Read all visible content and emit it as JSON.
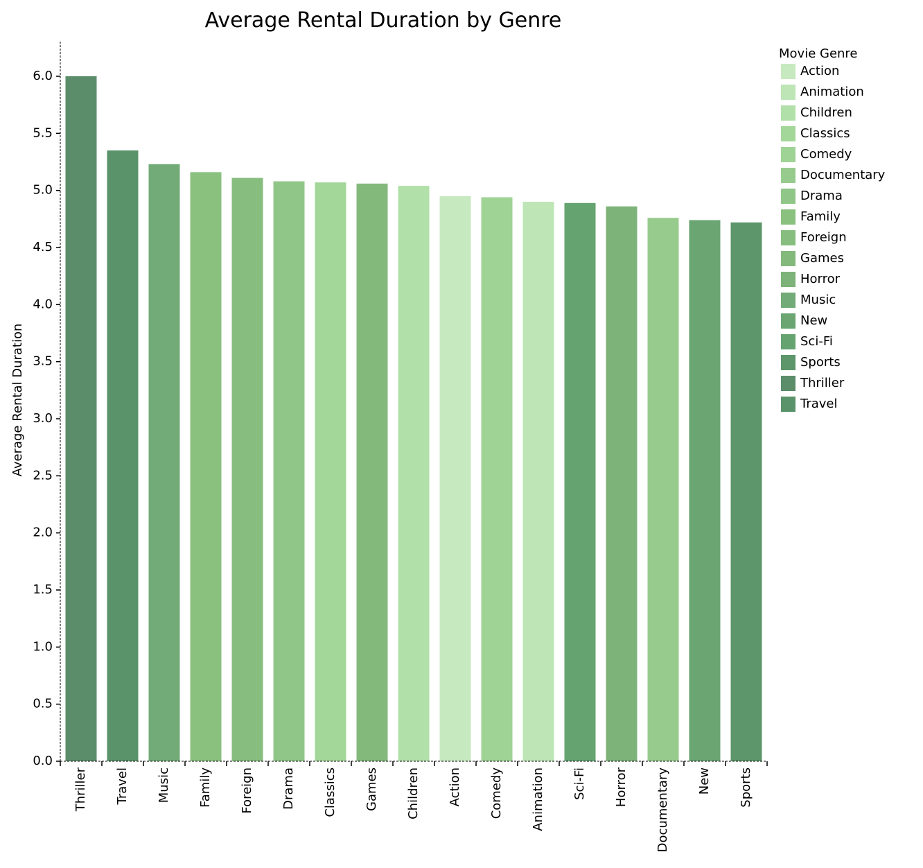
{
  "chart_data": {
    "type": "bar",
    "title": "Average Rental Duration by Genre",
    "xlabel": "",
    "ylabel": "Average Rental Duration",
    "ylim": [
      0,
      6.3
    ],
    "yticks": [
      "0.0",
      "0.5",
      "1.0",
      "1.5",
      "2.0",
      "2.5",
      "3.0",
      "3.5",
      "4.0",
      "4.5",
      "5.0",
      "5.5",
      "6.0"
    ],
    "grid": false,
    "legend_position": "top-right",
    "legend_title": "Movie Genre",
    "categories": [
      "Thriller",
      "Travel",
      "Music",
      "Family",
      "Foreign",
      "Drama",
      "Classics",
      "Games",
      "Children",
      "Action",
      "Comedy",
      "Animation",
      "Sci-Fi",
      "Horror",
      "Documentary",
      "New",
      "Sports"
    ],
    "values": [
      6.0,
      5.35,
      5.23,
      5.16,
      5.11,
      5.08,
      5.07,
      5.06,
      5.04,
      4.95,
      4.94,
      4.9,
      4.89,
      4.86,
      4.76,
      4.74,
      4.72
    ],
    "legend": [
      {
        "label": "Action",
        "color": "#c7e9c0"
      },
      {
        "label": "Animation",
        "color": "#bde5b5"
      },
      {
        "label": "Children",
        "color": "#b1e0a8"
      },
      {
        "label": "Classics",
        "color": "#a3d699"
      },
      {
        "label": "Comedy",
        "color": "#9ed395"
      },
      {
        "label": "Documentary",
        "color": "#97cb8d"
      },
      {
        "label": "Drama",
        "color": "#90c788"
      },
      {
        "label": "Family",
        "color": "#8bc17f"
      },
      {
        "label": "Foreign",
        "color": "#87bd7e"
      },
      {
        "label": "Games",
        "color": "#84b97c"
      },
      {
        "label": "Horror",
        "color": "#7db378"
      },
      {
        "label": "Music",
        "color": "#72ab77"
      },
      {
        "label": "New",
        "color": "#6aa572"
      },
      {
        "label": "Sci-Fi",
        "color": "#65a371"
      },
      {
        "label": "Sports",
        "color": "#5c966a"
      },
      {
        "label": "Thriller",
        "color": "#5b8d6b"
      },
      {
        "label": "Travel",
        "color": "#5a936a"
      }
    ]
  }
}
